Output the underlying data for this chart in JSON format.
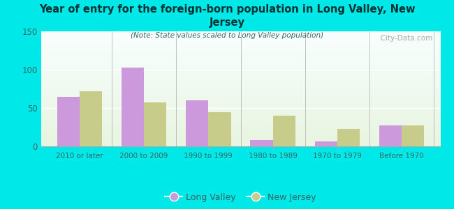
{
  "title": "Year of entry for the foreign-born population in Long Valley, New\nJersey",
  "subtitle": "(Note: State values scaled to Long Valley population)",
  "categories": [
    "2010 or later",
    "2000 to 2009",
    "1990 to 1999",
    "1980 to 1989",
    "1970 to 1979",
    "Before 1970"
  ],
  "long_valley": [
    65,
    103,
    60,
    8,
    6,
    27
  ],
  "new_jersey": [
    72,
    57,
    45,
    40,
    23,
    27
  ],
  "lv_color": "#cc99dd",
  "nj_color": "#c8cc8a",
  "bg_color": "#00e8e8",
  "ylim": [
    0,
    150
  ],
  "yticks": [
    0,
    50,
    100,
    150
  ],
  "bar_width": 0.35,
  "legend_lv": "Long Valley",
  "legend_nj": "New Jersey",
  "watermark": "  City-Data.com"
}
